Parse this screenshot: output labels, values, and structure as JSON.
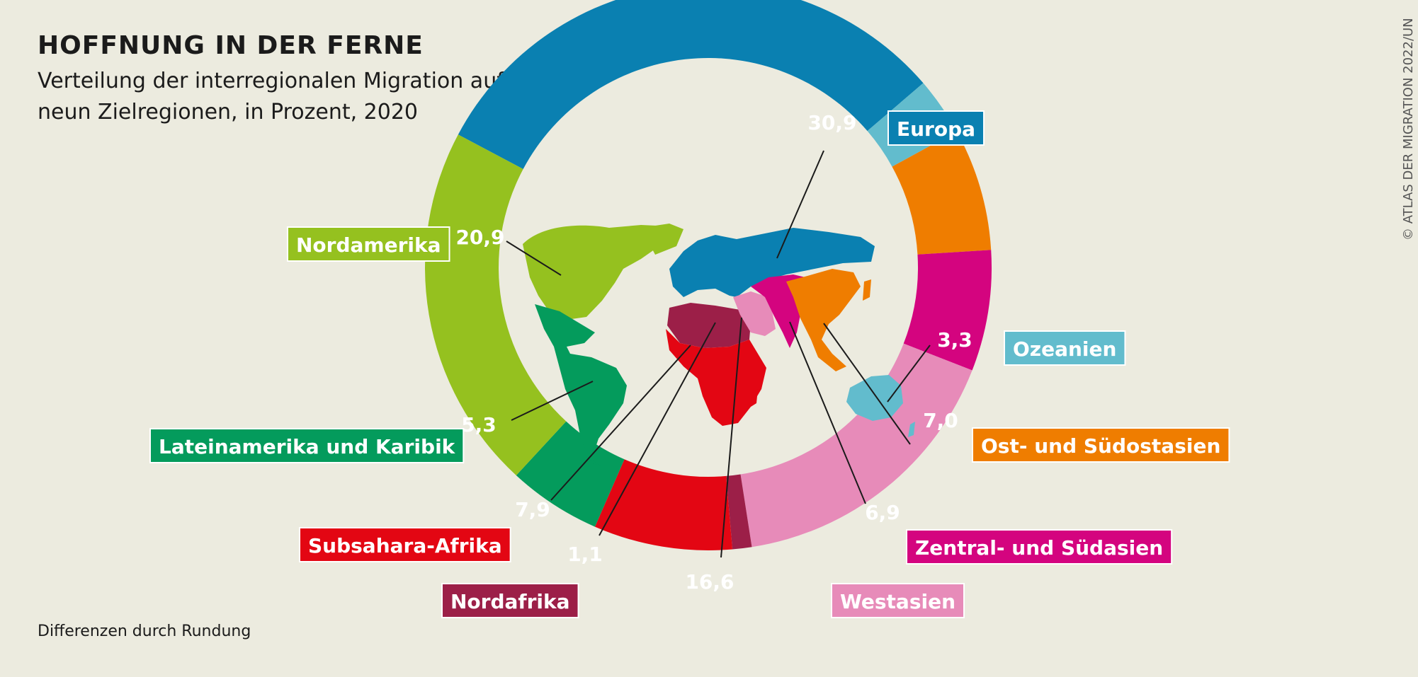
{
  "title": "HOFFNUNG IN DER FERNE",
  "subtitle": "Verteilung der interregionalen Migration auf neun Zielregionen, in Prozent, 2020",
  "footnote": "Differenzen durch Rundung",
  "credit": "© ATLAS DER MIGRATION 2022/UN",
  "chart_data": {
    "type": "pie",
    "variant": "donut",
    "unit": "Prozent",
    "categories": [
      "Europa",
      "Ozeanien",
      "Ost- und Südostasien",
      "Zentral- und Südasien",
      "Westasien",
      "Nordafrika",
      "Subsahara-Afrika",
      "Lateinamerika und Karibik",
      "Nordamerika"
    ],
    "values": [
      30.9,
      3.3,
      7.0,
      6.9,
      16.6,
      1.1,
      7.9,
      5.3,
      20.9
    ],
    "value_labels": [
      "30,9",
      "3,3",
      "7,0",
      "6,9",
      "16,6",
      "1,1",
      "7,9",
      "5,3",
      "20,9"
    ],
    "colors": [
      "#0a80b1",
      "#62bccd",
      "#ef7d00",
      "#d4047f",
      "#e78bb9",
      "#9c1f48",
      "#e30613",
      "#049b5c",
      "#95c11f"
    ],
    "center_graphic": "world map colored by region"
  }
}
